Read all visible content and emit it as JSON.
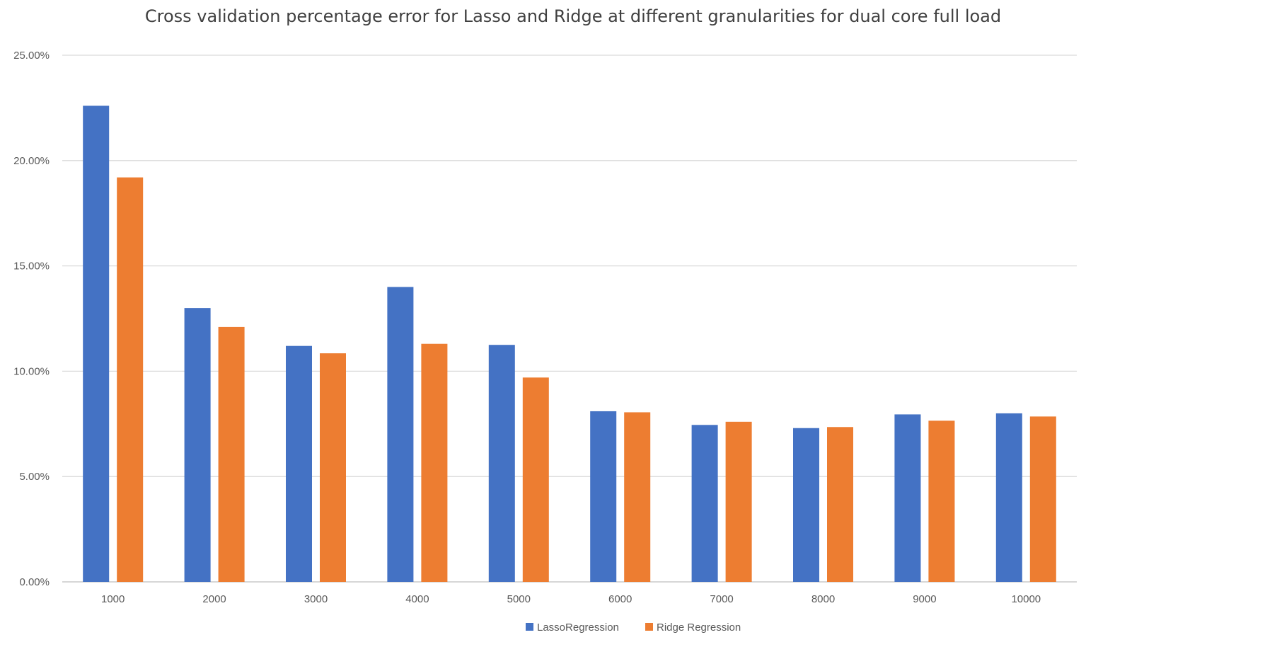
{
  "chart_data": {
    "type": "bar",
    "title": "Cross validation percentage error for Lasso and Ridge at different granularities for dual core full load",
    "xlabel": "",
    "ylabel": "",
    "categories": [
      "1000",
      "2000",
      "3000",
      "4000",
      "5000",
      "6000",
      "7000",
      "8000",
      "9000",
      "10000"
    ],
    "series": [
      {
        "name": "LassoRegression",
        "color": "#4472C4",
        "values": [
          22.6,
          13.0,
          11.2,
          14.0,
          11.25,
          8.1,
          7.45,
          7.3,
          7.95,
          8.0
        ]
      },
      {
        "name": "Ridge Regression",
        "color": "#ED7D31",
        "values": [
          19.2,
          12.1,
          10.85,
          11.3,
          9.7,
          8.05,
          7.6,
          7.35,
          7.65,
          7.85
        ]
      }
    ],
    "ylim": [
      0,
      25
    ],
    "yticks": [
      "0.00%",
      "5.00%",
      "10.00%",
      "15.00%",
      "20.00%",
      "25.00%"
    ],
    "ytick_values": [
      0,
      5,
      10,
      15,
      20,
      25
    ],
    "grid": true,
    "legend_position": "bottom"
  }
}
